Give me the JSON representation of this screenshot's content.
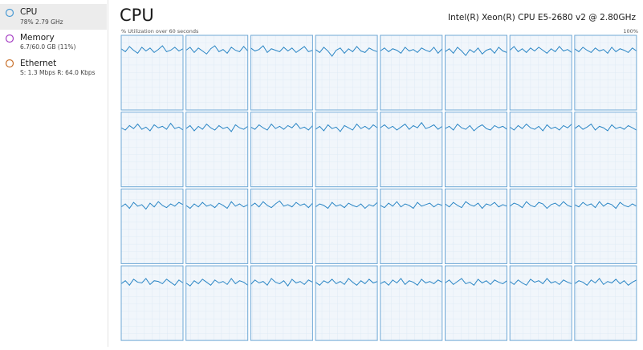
{
  "sidebar": {
    "items": [
      {
        "name": "CPU",
        "detail": "78%  2.79 GHz"
      },
      {
        "name": "Memory",
        "detail": "6.7/60.0 GB (11%)"
      },
      {
        "name": "Ethernet",
        "detail": "S: 1.3 Mbps  R: 64.0 Kbps"
      }
    ]
  },
  "header": {
    "title": "CPU",
    "processor": "Intel(R) Xeon(R) CPU E5-2680 v2 @ 2.80GHz",
    "graph_label": "% Utilization over 60 seconds",
    "graph_max": "100%"
  },
  "chart_data": {
    "type": "line",
    "color": "#2b86c5",
    "ylim": [
      0,
      100
    ],
    "series": [
      {
        "values": [
          82,
          78,
          85,
          80,
          76,
          84,
          79,
          83,
          77,
          81,
          86,
          78,
          80,
          84,
          79,
          82
        ]
      },
      {
        "values": [
          80,
          84,
          77,
          83,
          79,
          75,
          82,
          86,
          78,
          81,
          76,
          84,
          80,
          78,
          85,
          79
        ]
      },
      {
        "values": [
          83,
          79,
          81,
          86,
          77,
          82,
          80,
          78,
          84,
          79,
          83,
          77,
          81,
          85,
          78,
          80
        ]
      },
      {
        "values": [
          81,
          77,
          84,
          79,
          72,
          80,
          83,
          76,
          82,
          78,
          85,
          79,
          77,
          83,
          80,
          78
        ]
      },
      {
        "values": [
          79,
          83,
          78,
          82,
          80,
          76,
          84,
          79,
          81,
          77,
          83,
          80,
          78,
          84,
          76,
          82
        ]
      },
      {
        "values": [
          78,
          82,
          76,
          84,
          79,
          73,
          81,
          77,
          83,
          75,
          80,
          82,
          76,
          84,
          79,
          77
        ]
      },
      {
        "values": [
          80,
          85,
          78,
          82,
          77,
          83,
          79,
          84,
          80,
          76,
          82,
          78,
          85,
          79,
          81,
          77
        ]
      },
      {
        "values": [
          82,
          78,
          84,
          80,
          77,
          83,
          79,
          81,
          76,
          84,
          78,
          82,
          80,
          77,
          83,
          79
        ]
      },
      {
        "values": [
          79,
          76,
          82,
          78,
          84,
          77,
          80,
          75,
          83,
          79,
          81,
          77,
          85,
          78,
          80,
          76
        ]
      },
      {
        "values": [
          78,
          82,
          75,
          81,
          77,
          84,
          79,
          76,
          82,
          78,
          80,
          74,
          83,
          79,
          77,
          81
        ]
      },
      {
        "values": [
          80,
          77,
          83,
          79,
          76,
          84,
          78,
          81,
          77,
          82,
          79,
          85,
          78,
          80,
          76,
          82
        ]
      },
      {
        "values": [
          77,
          81,
          75,
          83,
          78,
          80,
          74,
          82,
          79,
          76,
          84,
          78,
          81,
          77,
          83,
          79
        ]
      },
      {
        "values": [
          79,
          83,
          78,
          81,
          76,
          80,
          84,
          77,
          82,
          79,
          86,
          78,
          80,
          83,
          77,
          81
        ]
      },
      {
        "values": [
          78,
          81,
          76,
          84,
          79,
          77,
          82,
          75,
          80,
          83,
          78,
          76,
          82,
          79,
          81,
          77
        ]
      },
      {
        "values": [
          80,
          76,
          82,
          78,
          84,
          79,
          77,
          81,
          75,
          83,
          78,
          80,
          76,
          82,
          79,
          84
        ]
      },
      {
        "values": [
          78,
          82,
          77,
          80,
          84,
          76,
          81,
          79,
          75,
          83,
          78,
          80,
          77,
          82,
          79,
          76
        ]
      },
      {
        "values": [
          76,
          80,
          74,
          82,
          77,
          79,
          73,
          81,
          76,
          83,
          78,
          75,
          80,
          77,
          82,
          79
        ]
      },
      {
        "values": [
          78,
          74,
          80,
          76,
          82,
          77,
          79,
          75,
          81,
          78,
          74,
          83,
          77,
          80,
          76,
          79
        ]
      },
      {
        "values": [
          77,
          81,
          76,
          83,
          78,
          75,
          80,
          84,
          77,
          79,
          76,
          82,
          78,
          80,
          75,
          81
        ]
      },
      {
        "values": [
          76,
          80,
          78,
          74,
          82,
          77,
          79,
          75,
          81,
          78,
          76,
          80,
          74,
          79,
          77,
          82
        ]
      },
      {
        "values": [
          78,
          75,
          81,
          77,
          83,
          76,
          80,
          78,
          74,
          82,
          77,
          79,
          81,
          76,
          80,
          78
        ]
      },
      {
        "values": [
          80,
          76,
          82,
          78,
          75,
          83,
          79,
          77,
          81,
          74,
          80,
          78,
          82,
          76,
          79,
          77
        ]
      },
      {
        "values": [
          77,
          81,
          79,
          75,
          83,
          78,
          76,
          82,
          80,
          74,
          79,
          81,
          77,
          83,
          78,
          76
        ]
      },
      {
        "values": [
          79,
          76,
          82,
          78,
          80,
          75,
          83,
          77,
          81,
          79,
          74,
          82,
          78,
          76,
          80,
          77
        ]
      },
      {
        "values": [
          76,
          80,
          74,
          82,
          78,
          77,
          83,
          75,
          80,
          79,
          76,
          82,
          78,
          74,
          81,
          77
        ]
      },
      {
        "values": [
          77,
          73,
          80,
          76,
          82,
          78,
          74,
          81,
          77,
          79,
          75,
          83,
          76,
          80,
          78,
          74
        ]
      },
      {
        "values": [
          75,
          81,
          77,
          79,
          74,
          83,
          78,
          76,
          80,
          73,
          82,
          77,
          79,
          75,
          81,
          78
        ]
      },
      {
        "values": [
          78,
          74,
          80,
          77,
          82,
          76,
          79,
          75,
          83,
          78,
          74,
          80,
          76,
          82,
          77,
          79
        ]
      },
      {
        "values": [
          76,
          79,
          74,
          81,
          77,
          83,
          75,
          80,
          78,
          74,
          82,
          77,
          79,
          76,
          81,
          78
        ]
      },
      {
        "values": [
          77,
          81,
          75,
          79,
          83,
          76,
          78,
          74,
          82,
          77,
          80,
          75,
          81,
          78,
          76,
          80
        ]
      },
      {
        "values": [
          79,
          75,
          81,
          77,
          74,
          82,
          78,
          80,
          76,
          83,
          77,
          79,
          75,
          81,
          78,
          76
        ]
      },
      {
        "values": [
          76,
          80,
          78,
          74,
          81,
          77,
          83,
          75,
          79,
          77,
          82,
          76,
          80,
          74,
          78,
          81
        ]
      }
    ]
  }
}
